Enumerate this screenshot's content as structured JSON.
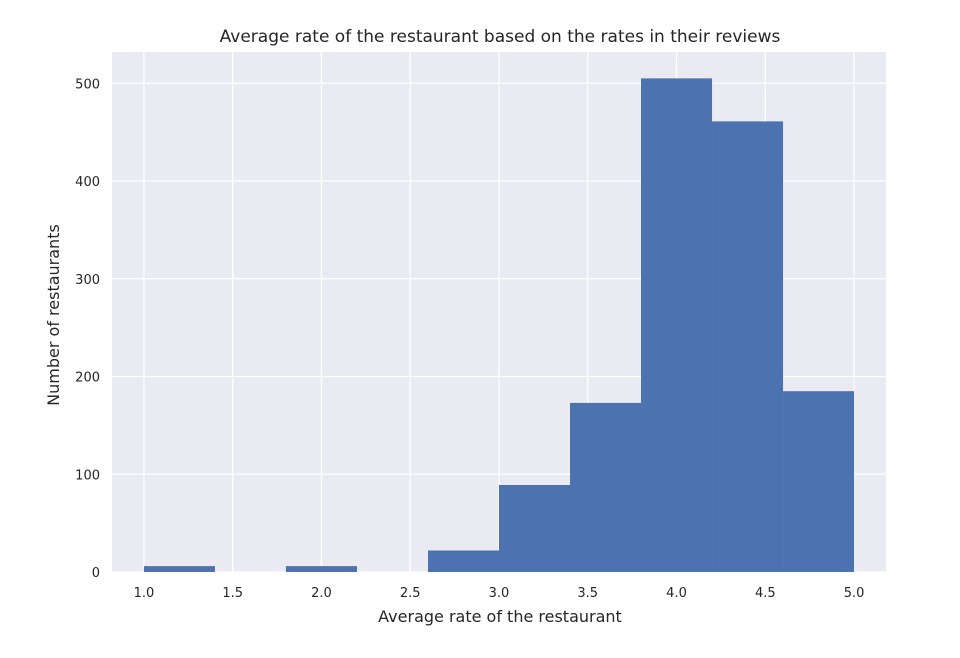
{
  "chart_data": {
    "type": "bar",
    "title": "Average rate of the restaurant based on the rates in their reviews",
    "xlabel": "Average rate of the restaurant",
    "ylabel": "Number of restaurants",
    "xlim": [
      0.82,
      5.18
    ],
    "ylim": [
      0,
      532
    ],
    "x_ticks": [
      1.0,
      1.5,
      2.0,
      2.5,
      3.0,
      3.5,
      4.0,
      4.5,
      5.0
    ],
    "x_tick_labels": [
      "1.0",
      "1.5",
      "2.0",
      "2.5",
      "3.0",
      "3.5",
      "4.0",
      "4.5",
      "5.0"
    ],
    "y_ticks": [
      0,
      100,
      200,
      300,
      400,
      500
    ],
    "y_tick_labels": [
      "0",
      "100",
      "200",
      "300",
      "400",
      "500"
    ],
    "grid": true,
    "legend": "none",
    "bins": [
      {
        "x0": 1.0,
        "x1": 1.4,
        "value": 6
      },
      {
        "x0": 1.4,
        "x1": 1.8,
        "value": 0
      },
      {
        "x0": 1.8,
        "x1": 2.2,
        "value": 6
      },
      {
        "x0": 2.2,
        "x1": 2.6,
        "value": 0
      },
      {
        "x0": 2.6,
        "x1": 3.0,
        "value": 22
      },
      {
        "x0": 3.0,
        "x1": 3.4,
        "value": 89
      },
      {
        "x0": 3.4,
        "x1": 3.8,
        "value": 173
      },
      {
        "x0": 3.8,
        "x1": 4.2,
        "value": 505
      },
      {
        "x0": 4.2,
        "x1": 4.6,
        "value": 461
      },
      {
        "x0": 4.6,
        "x1": 5.0,
        "value": 185
      }
    ],
    "colors": {
      "bar": "#4c72b0",
      "background": "#eaeaf2",
      "grid": "#ffffff",
      "text": "#262626"
    }
  }
}
